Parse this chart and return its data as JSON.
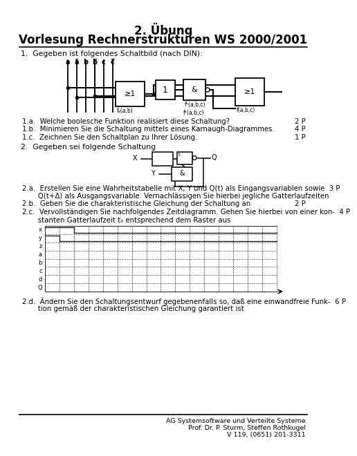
{
  "title_line1": "2. Übung",
  "title_line2": "Vorlesung Rechnerstrukturen WS 2000/2001",
  "bg_color": "#ffffff",
  "text_color": "#000000",
  "footer_line1": "AG Systemsoftware und Verteilte Systeme",
  "footer_line2": "Prof. Dr. P. Sturm, Steffen Rothkugel",
  "footer_line3": "V 119, (0651) 201-3311",
  "section1_header": "1.  Gegeben ist folgendes Schaltbild (nach DIN):",
  "section1a": "1.a.  Welche boolesche Funktion realisiert diese Schaltung?",
  "section1a_pts": "2 P",
  "section1b": "1.b.  Minimieren Sie die Schaltung mittels eines Karnaugh-Diagrammes.",
  "section1b_pts": "4 P",
  "section1c": "1.c.  Zeichnen Sie den Schaltplan zu Ihrer Lösung.",
  "section1c_pts": "1 P",
  "section2_header": "2.  Gegeben sei folgende Schaltung",
  "section2a": "2.a.  Erstellen Sie eine Wahrheitstabelle mit X, Y und Q(t) als Eingangsvariablen sowie  3 P",
  "section2a2": "       Q(t+Δ) als Ausgangsvariable. Vernachlässigen Sie hierbei jegliche Gatterlaufzeiten",
  "section2b": "2.b.  Geben Sie die charakteristische Gleichung der Schaltung an",
  "section2b_pts": "2 P",
  "section2c": "2.c.  Vervollständigen Sie nachfolgendes Zeitdiagramm. Gehen Sie hierbei von einer kon-  4 P",
  "section2c2": "       stanten Gatterlaufzeit t₀ entsprechend dem Raster aus",
  "section2d": "2.d.  Ändern Sie den Schaltungsentwurf gegebenenfalls so, daß eine einwandfreie Funk-  6 P",
  "section2d2": "       tion gemäß der charakteristischen Gleichung garantiert ist",
  "timing_row_labels": [
    "x",
    "y",
    "z",
    "a",
    "b",
    "c",
    "d",
    "Q"
  ],
  "timing_num_cols": 16,
  "timing_num_rows": 8
}
